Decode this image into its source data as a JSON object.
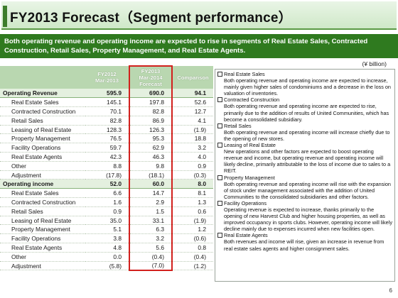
{
  "title": "FY2013 Forecast（Segment performance）",
  "banner": "Both operating revenue and operating income are expected to rise in segments of Real Estate Sales, Contracted Construction, Retail Sales, Property Management, and Real Estate Agents.",
  "unit": "(¥ billion)",
  "headers": {
    "fy2012": "FY2012\nMar-2013",
    "fy2013": "FY2013\nMar-2014\nForecast",
    "comparison": "Comparison"
  },
  "revenue": {
    "label": "Operating Revenue",
    "fy2012": "595.9",
    "fy2013": "690.0",
    "comparison": "94.1",
    "rows": [
      {
        "label": "Real Estate Sales",
        "fy2012": "145.1",
        "fy2013": "197.8",
        "comparison": "52.6"
      },
      {
        "label": "Contracted Construction",
        "fy2012": "70.1",
        "fy2013": "82.8",
        "comparison": "12.7"
      },
      {
        "label": "Retail Sales",
        "fy2012": "82.8",
        "fy2013": "86.9",
        "comparison": "4.1"
      },
      {
        "label": "Leasing of Real Estate",
        "fy2012": "128.3",
        "fy2013": "126.3",
        "comparison": "(1.9)"
      },
      {
        "label": "Property Management",
        "fy2012": "76.5",
        "fy2013": "95.3",
        "comparison": "18.8"
      },
      {
        "label": "Facility Operations",
        "fy2012": "59.7",
        "fy2013": "62.9",
        "comparison": "3.2"
      },
      {
        "label": "Real Estate Agents",
        "fy2012": "42.3",
        "fy2013": "46.3",
        "comparison": "4.0"
      },
      {
        "label": "Other",
        "fy2012": "8.8",
        "fy2013": "9.8",
        "comparison": "0.9"
      },
      {
        "label": "Adjustment",
        "fy2012": "(17.8)",
        "fy2013": "(18.1)",
        "comparison": "(0.3)"
      }
    ]
  },
  "income": {
    "label": "Operating income",
    "fy2012": "52.0",
    "fy2013": "60.0",
    "comparison": "8.0",
    "rows": [
      {
        "label": "Real Estate Sales",
        "fy2012": "6.6",
        "fy2013": "14.7",
        "comparison": "8.1"
      },
      {
        "label": "Contracted Construction",
        "fy2012": "1.6",
        "fy2013": "2.9",
        "comparison": "1.3"
      },
      {
        "label": "Retail Sales",
        "fy2012": "0.9",
        "fy2013": "1.5",
        "comparison": "0.6"
      },
      {
        "label": "Leasing of Real Estate",
        "fy2012": "35.0",
        "fy2013": "33.1",
        "comparison": "(1.9)"
      },
      {
        "label": "Property Management",
        "fy2012": "5.1",
        "fy2013": "6.3",
        "comparison": "1.2"
      },
      {
        "label": "Facility Operations",
        "fy2012": "3.8",
        "fy2013": "3.2",
        "comparison": "(0.6)"
      },
      {
        "label": "Real Estate Agents",
        "fy2012": "4.8",
        "fy2013": "5.6",
        "comparison": "0.8"
      },
      {
        "label": "Other",
        "fy2012": "0.0",
        "fy2013": "(0.4)",
        "comparison": "(0.4)"
      },
      {
        "label": "Adjustment",
        "fy2012": "(5.8)",
        "fy2013": "(7.0)",
        "comparison": "(1.2)"
      }
    ]
  },
  "notes": [
    {
      "heading": "Real Estate Sales",
      "body": "Both operating revenue and operating income are expected to increase, mainly given higher sales of condominiums and a decrease in the loss on valuation of inventories."
    },
    {
      "heading": "Contracted Construction",
      "body": "Both operating revenue and operating income are expected to rise, primarily due to the addition of results of United Communities, which has become a consolidated subsidiary."
    },
    {
      "heading": "Retail Sales",
      "body": "Both operating revenue and operating income will increase chiefly due to the opening of new stores."
    },
    {
      "heading": "Leasing of Real Estate",
      "body": "New operations and other factors are expected to boost operating revenue and income, but operating revenue and operating income will likely decline, primarily attributable to the loss of income due to sales to a REIT."
    },
    {
      "heading": "Property Management",
      "body": "Both operating revenue and operating income will rise with the expansion of stock under management associated with the addition of United Communities to the consolidated subsidiaries and other factors."
    },
    {
      "heading": "Facility Operations",
      "body": "Operating revenue is expected to increase, thanks primarily to the opening of new Harvest Club and higher housing properties, as well as improved occupancy in sports clubs. However, operating income will likely decline mainly due to expenses incurred when new facilities open."
    },
    {
      "heading": "Real Estate Agents",
      "body": "Both revenues and income will rise, given an increase in revenue from real estate sales agents and higher consignment sales."
    }
  ],
  "page_number": "6",
  "colors": {
    "banner": "#2f7a1f",
    "forecast_highlight": "#d2201d",
    "header_fill": "#b9d7b0",
    "total_row_fill": "#e4f0df"
  }
}
